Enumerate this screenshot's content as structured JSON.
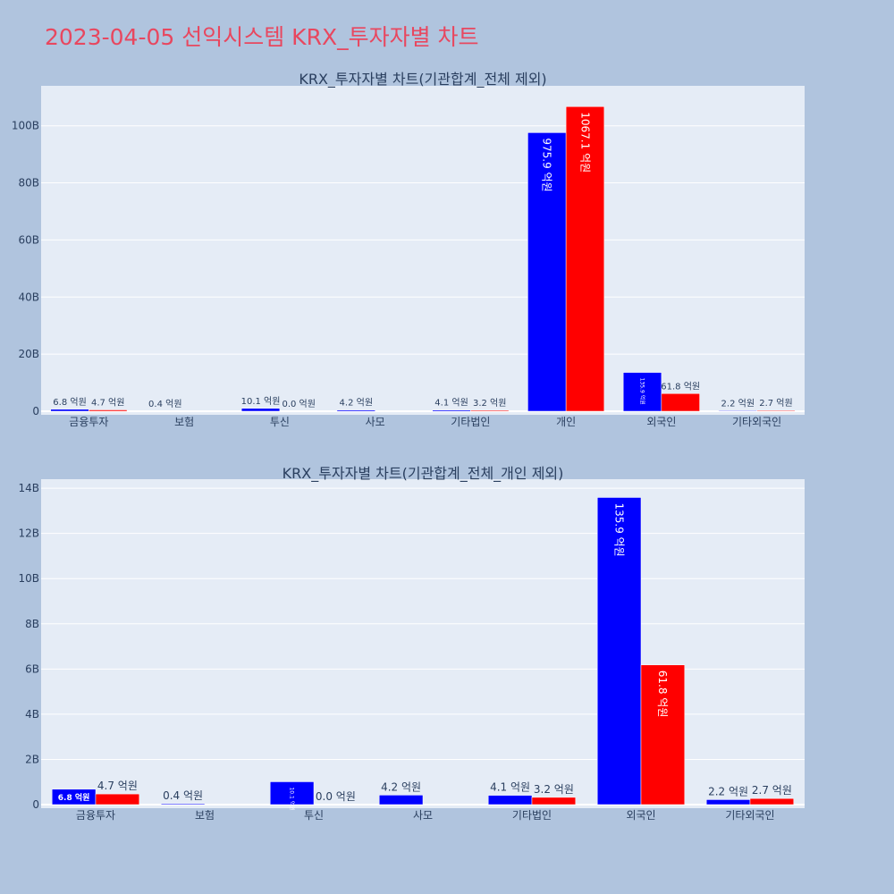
{
  "page_title": "2023-04-05 선익시스템 KRX_투자자별 차트",
  "colors": {
    "background": "#b0c4de",
    "plot_bg": "#e5ecf6",
    "buy": "#0000ff",
    "sell": "#ff0000",
    "title": "#e8475f",
    "text": "#2a3f5f"
  },
  "chart_data": [
    {
      "type": "bar",
      "title": "KRX_투자자별 차트(기관합계_전체 제외)",
      "categories": [
        "금융투자",
        "보험",
        "투신",
        "사모",
        "기타법인",
        "개인",
        "외국인",
        "기타외국인"
      ],
      "ylim": [
        0,
        114
      ],
      "yunit": "B",
      "yticks": [
        0,
        20,
        40,
        60,
        80,
        100
      ],
      "ytick_labels": [
        "0",
        "20B",
        "40B",
        "60B",
        "80B",
        "100B"
      ],
      "grid": true,
      "series": [
        {
          "values": [
            0.68,
            0.04,
            1.01,
            0.42,
            0.41,
            97.59,
            13.59,
            0.22
          ],
          "labels": [
            "6.8 억원",
            "0.4 억원",
            "10.1 억원",
            "4.2 억원",
            "4.1 억원",
            "975.9 억원",
            "135.9 억원",
            "2.2 억원"
          ]
        },
        {
          "values": [
            0.47,
            0,
            0,
            0,
            0.32,
            106.71,
            6.18,
            0.27
          ],
          "labels": [
            "4.7 억원",
            "",
            "0.0 억원",
            "",
            "3.2 억원",
            "1067.1 억원",
            "61.8 억원",
            "2.7 억원"
          ]
        }
      ]
    },
    {
      "type": "bar",
      "title": "KRX_투자자별 차트(기관합계_전체_개인 제외)",
      "categories": [
        "금융투자",
        "보험",
        "투신",
        "사모",
        "기타법인",
        "외국인",
        "기타외국인"
      ],
      "ylim": [
        0,
        14.4
      ],
      "yunit": "B",
      "yticks": [
        0,
        2,
        4,
        6,
        8,
        10,
        12,
        14
      ],
      "ytick_labels": [
        "0",
        "2B",
        "4B",
        "6B",
        "8B",
        "10B",
        "12B",
        "14B"
      ],
      "grid": true,
      "series": [
        {
          "values": [
            0.68,
            0.04,
            1.01,
            0.42,
            0.41,
            13.59,
            0.22
          ],
          "labels": [
            "6.8 억원",
            "0.4 억원",
            "10.1 억원",
            "4.2 억원",
            "4.1 억원",
            "135.9 억원",
            "2.2 억원"
          ]
        },
        {
          "values": [
            0.47,
            0,
            0,
            0,
            0.32,
            6.18,
            0.27
          ],
          "labels": [
            "4.7 억원",
            "",
            "0.0 억원",
            "",
            "3.2 억원",
            "61.8 억원",
            "2.7 억원"
          ]
        }
      ]
    }
  ]
}
